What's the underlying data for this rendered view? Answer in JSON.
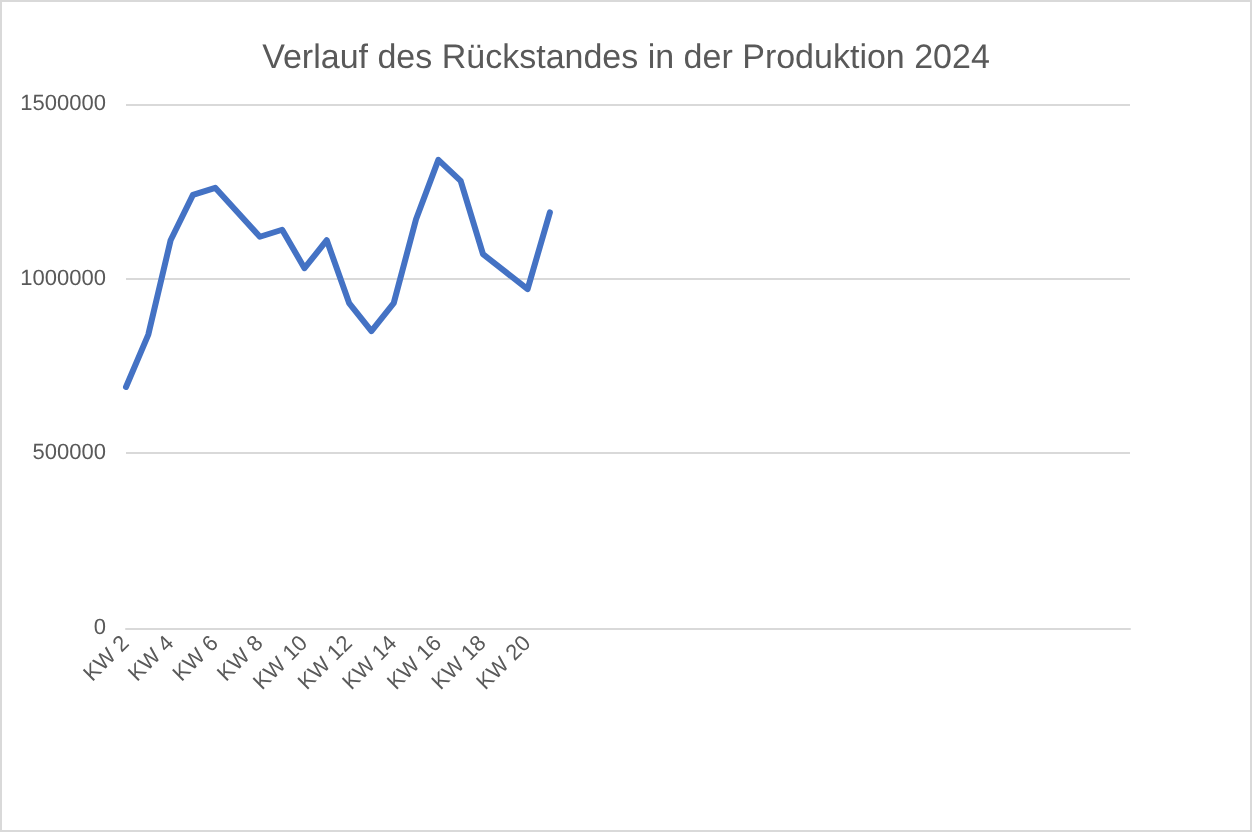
{
  "chart_data": {
    "type": "line",
    "title": "Verlauf des Rückstandes in der Produktion 2024",
    "categories": [
      "KW 2",
      null,
      "KW 4",
      null,
      "KW 6",
      null,
      "KW 8",
      null,
      "KW 10",
      null,
      "KW 12",
      null,
      "KW 14",
      null,
      "KW 16",
      null,
      "KW 18",
      null,
      "KW 20",
      null,
      null,
      null,
      null,
      null,
      null,
      null,
      null,
      null,
      null,
      null,
      null,
      null,
      null,
      null,
      null,
      null,
      null,
      null,
      null,
      null,
      null,
      null,
      null,
      null,
      null,
      null
    ],
    "series": [
      {
        "color": "#4472c4",
        "values": [
          690000,
          840000,
          1110000,
          1240000,
          1260000,
          1190000,
          1120000,
          1140000,
          1030000,
          1110000,
          930000,
          850000,
          930000,
          1170000,
          1340000,
          1280000,
          1070000,
          1020000,
          970000,
          1190000,
          null,
          null,
          null,
          null,
          null,
          null,
          null,
          null,
          null,
          null,
          null,
          null,
          null,
          null,
          null,
          null,
          null,
          null,
          null,
          null,
          null,
          null,
          null,
          null,
          null,
          null
        ]
      }
    ],
    "ylim": [
      0,
      1500000
    ],
    "yticks": [
      0,
      500000,
      1000000,
      1500000
    ],
    "grid": "y",
    "marker": "none",
    "line_style": "solid"
  }
}
